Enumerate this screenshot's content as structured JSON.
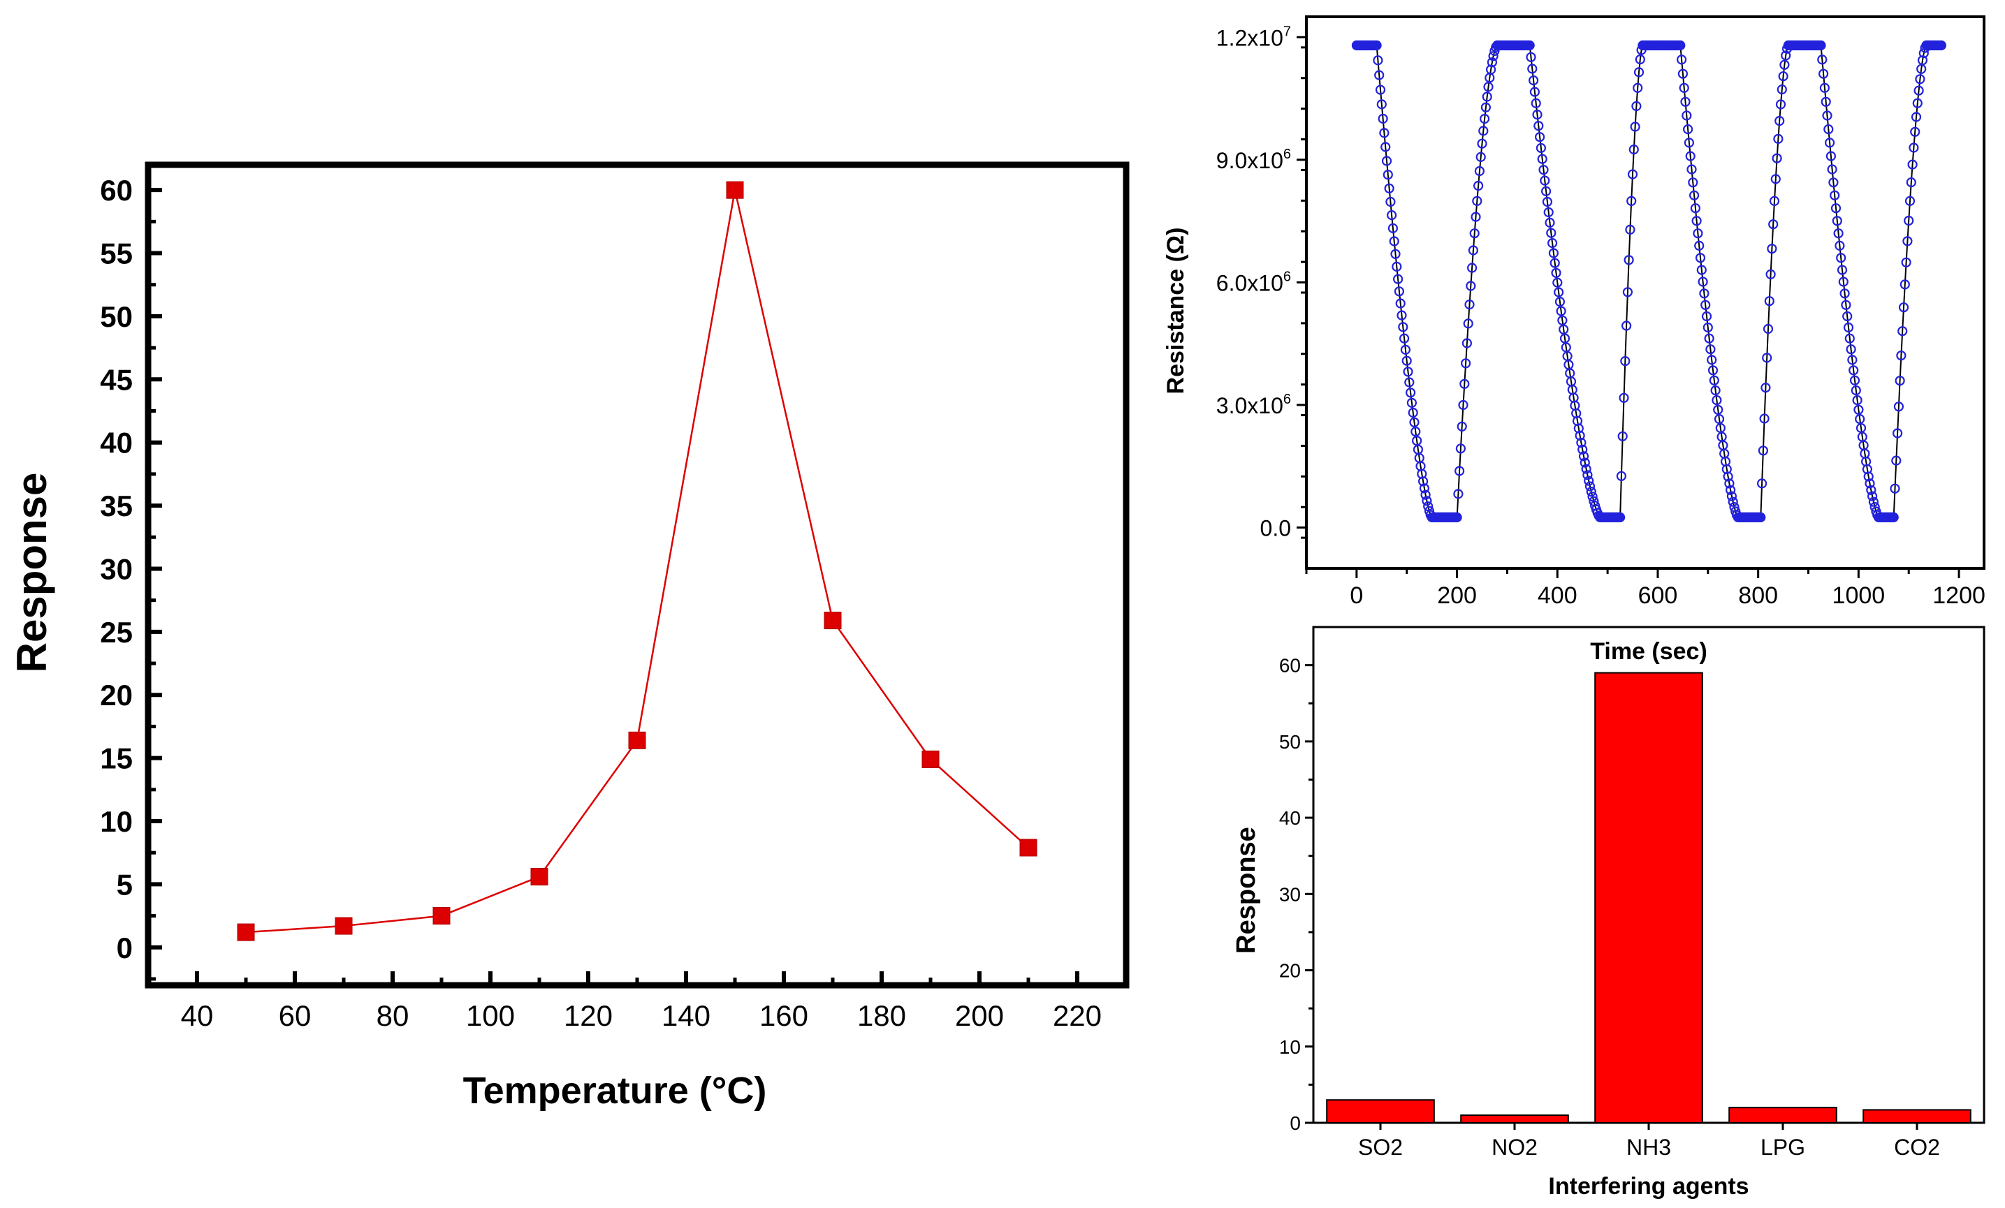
{
  "colors": {
    "line_marker": "#dd0000",
    "resistance_points": "#2222dd",
    "bar_fill": "#ff0000",
    "axis": "#000000"
  },
  "chart_data": [
    {
      "type": "line",
      "title": "",
      "xlabel": "Temperature (°C)",
      "ylabel": "Response",
      "xlim": [
        30,
        230
      ],
      "ylim": [
        -3,
        62
      ],
      "xticks": [
        40,
        60,
        80,
        100,
        120,
        140,
        160,
        180,
        200,
        220
      ],
      "yticks": [
        0,
        5,
        10,
        15,
        20,
        25,
        30,
        35,
        40,
        45,
        50,
        55,
        60
      ],
      "x": [
        50,
        70,
        90,
        110,
        130,
        150,
        170,
        190,
        210
      ],
      "y": [
        1.2,
        1.7,
        2.5,
        5.6,
        16.4,
        60,
        25.9,
        14.9,
        7.9
      ],
      "grid": false,
      "marker": "square"
    },
    {
      "type": "scatter",
      "title": "",
      "xlabel": "Time (sec)",
      "ylabel": "Resistance (Ω)",
      "xlim": [
        -100,
        1250
      ],
      "ylim": [
        -1000000,
        12500000
      ],
      "xticks": [
        0,
        200,
        400,
        600,
        800,
        1000,
        1200
      ],
      "yticks": [
        0,
        3000000,
        6000000,
        9000000,
        12000000
      ],
      "ytick_labels": [
        "0.0",
        "3.0x10^6",
        "6.0x10^6",
        "9.0x10^6",
        "1.2x10^7"
      ],
      "cycles": [
        {
          "drop_start": 40,
          "drop_end": 150,
          "low_end": 200,
          "rise_end": 280,
          "high_end": 345
        },
        {
          "drop_start": 345,
          "drop_end": 485,
          "low_end": 525,
          "rise_end": 570,
          "high_end": 645
        },
        {
          "drop_start": 645,
          "drop_end": 760,
          "low_end": 805,
          "rise_end": 860,
          "high_end": 925
        },
        {
          "drop_start": 925,
          "drop_end": 1040,
          "low_end": 1070,
          "rise_end": 1135,
          "high_end": 1165
        }
      ],
      "high_value": 11800000,
      "low_value": 250000,
      "grid": false
    },
    {
      "type": "bar",
      "title": "",
      "xlabel": "Interfering agents",
      "ylabel": "Response",
      "categories": [
        "SO2",
        "NO2",
        "NH3",
        "LPG",
        "CO2"
      ],
      "values": [
        3,
        1,
        59,
        2,
        1.7
      ],
      "ylim": [
        0,
        65
      ],
      "yticks": [
        0,
        10,
        20,
        30,
        40,
        50,
        60
      ],
      "grid": false
    }
  ]
}
